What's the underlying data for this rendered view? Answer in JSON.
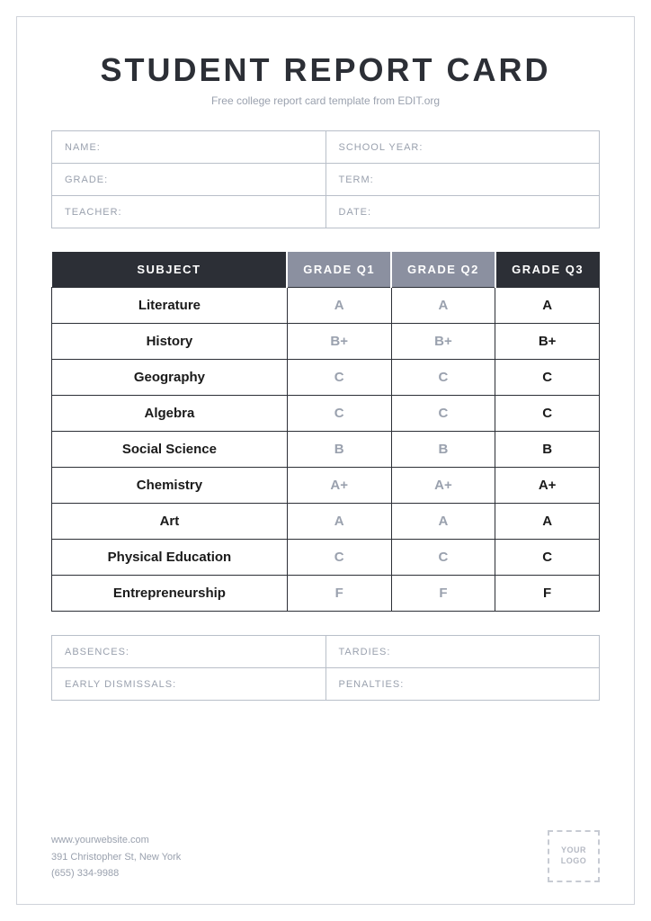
{
  "header": {
    "title": "STUDENT REPORT CARD",
    "subtitle": "Free college report card template from EDIT.org"
  },
  "info": {
    "name": "NAME:",
    "school_year": "SCHOOL YEAR:",
    "grade": "GRADE:",
    "term": "TERM:",
    "teacher": "TEACHER:",
    "date": "DATE:"
  },
  "grades_table": {
    "headers": {
      "subject": "SUBJECT",
      "q1": "GRADE Q1",
      "q2": "GRADE Q2",
      "q3": "GRADE Q3"
    },
    "rows": [
      {
        "subject": "Literature",
        "q1": "A",
        "q2": "A",
        "q3": "A"
      },
      {
        "subject": "History",
        "q1": "B+",
        "q2": "B+",
        "q3": "B+"
      },
      {
        "subject": "Geography",
        "q1": "C",
        "q2": "C",
        "q3": "C"
      },
      {
        "subject": "Algebra",
        "q1": "C",
        "q2": "C",
        "q3": "C"
      },
      {
        "subject": "Social Science",
        "q1": "B",
        "q2": "B",
        "q3": "B"
      },
      {
        "subject": "Chemistry",
        "q1": "A+",
        "q2": "A+",
        "q3": "A+"
      },
      {
        "subject": "Art",
        "q1": "A",
        "q2": "A",
        "q3": "A"
      },
      {
        "subject": "Physical Education",
        "q1": "C",
        "q2": "C",
        "q3": "C"
      },
      {
        "subject": "Entrepreneurship",
        "q1": "F",
        "q2": "F",
        "q3": "F"
      }
    ]
  },
  "attendance": {
    "absences": "ABSENCES:",
    "tardies": "TARDIES:",
    "early_dismissals": "EARLY DISMISSALS:",
    "penalties": "PENALTIES:"
  },
  "footer": {
    "website": "www.yourwebsite.com",
    "address": "391 Christopher St, New York",
    "phone": "(655) 334-9988",
    "logo_text": "YOUR LOGO"
  },
  "colors": {
    "dark": "#2c2f36",
    "muted_header": "#8b90a0",
    "border_light": "#b9bfc9",
    "text_muted": "#9aa1ae"
  }
}
